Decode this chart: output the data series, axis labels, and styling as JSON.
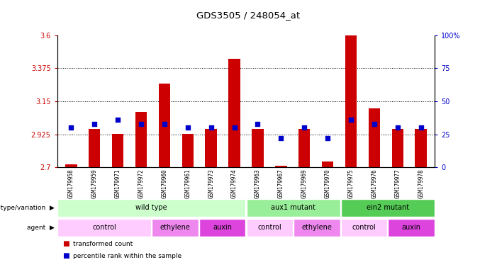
{
  "title": "GDS3505 / 248054_at",
  "samples": [
    "GSM179958",
    "GSM179959",
    "GSM179971",
    "GSM179972",
    "GSM179960",
    "GSM179961",
    "GSM179973",
    "GSM179974",
    "GSM179963",
    "GSM179967",
    "GSM179969",
    "GSM179970",
    "GSM179975",
    "GSM179976",
    "GSM179977",
    "GSM179978"
  ],
  "bar_values": [
    2.72,
    2.96,
    2.93,
    3.08,
    3.27,
    2.93,
    2.96,
    3.44,
    2.96,
    2.71,
    2.96,
    2.74,
    3.6,
    3.1,
    2.96,
    2.96
  ],
  "dot_values": [
    30,
    33,
    36,
    33,
    33,
    30,
    30,
    30,
    33,
    22,
    30,
    22,
    36,
    33,
    30,
    30
  ],
  "ymin": 2.7,
  "ymax": 3.6,
  "yticks": [
    2.7,
    2.925,
    3.15,
    3.375,
    3.6
  ],
  "ytick_labels": [
    "2.7",
    "2.925",
    "3.15",
    "3.375",
    "3.6"
  ],
  "y2ticks": [
    0,
    25,
    50,
    75,
    100
  ],
  "y2tick_labels": [
    "0",
    "25",
    "50",
    "75",
    "100%"
  ],
  "bar_color": "#cc0000",
  "dot_color": "#0000cc",
  "genotype_groups": [
    {
      "label": "wild type",
      "start": 0,
      "end": 7,
      "color": "#ccffcc"
    },
    {
      "label": "aux1 mutant",
      "start": 8,
      "end": 11,
      "color": "#99ee99"
    },
    {
      "label": "ein2 mutant",
      "start": 12,
      "end": 15,
      "color": "#55cc55"
    }
  ],
  "agent_groups": [
    {
      "label": "control",
      "start": 0,
      "end": 3,
      "color": "#ffccff"
    },
    {
      "label": "ethylene",
      "start": 4,
      "end": 5,
      "color": "#ee88ee"
    },
    {
      "label": "auxin",
      "start": 6,
      "end": 7,
      "color": "#dd44dd"
    },
    {
      "label": "control",
      "start": 8,
      "end": 9,
      "color": "#ffccff"
    },
    {
      "label": "ethylene",
      "start": 10,
      "end": 11,
      "color": "#ee88ee"
    },
    {
      "label": "control",
      "start": 12,
      "end": 13,
      "color": "#ffccff"
    },
    {
      "label": "auxin",
      "start": 14,
      "end": 15,
      "color": "#dd44dd"
    }
  ],
  "legend_items": [
    {
      "label": "transformed count",
      "color": "#cc0000"
    },
    {
      "label": "percentile rank within the sample",
      "color": "#0000cc"
    }
  ]
}
